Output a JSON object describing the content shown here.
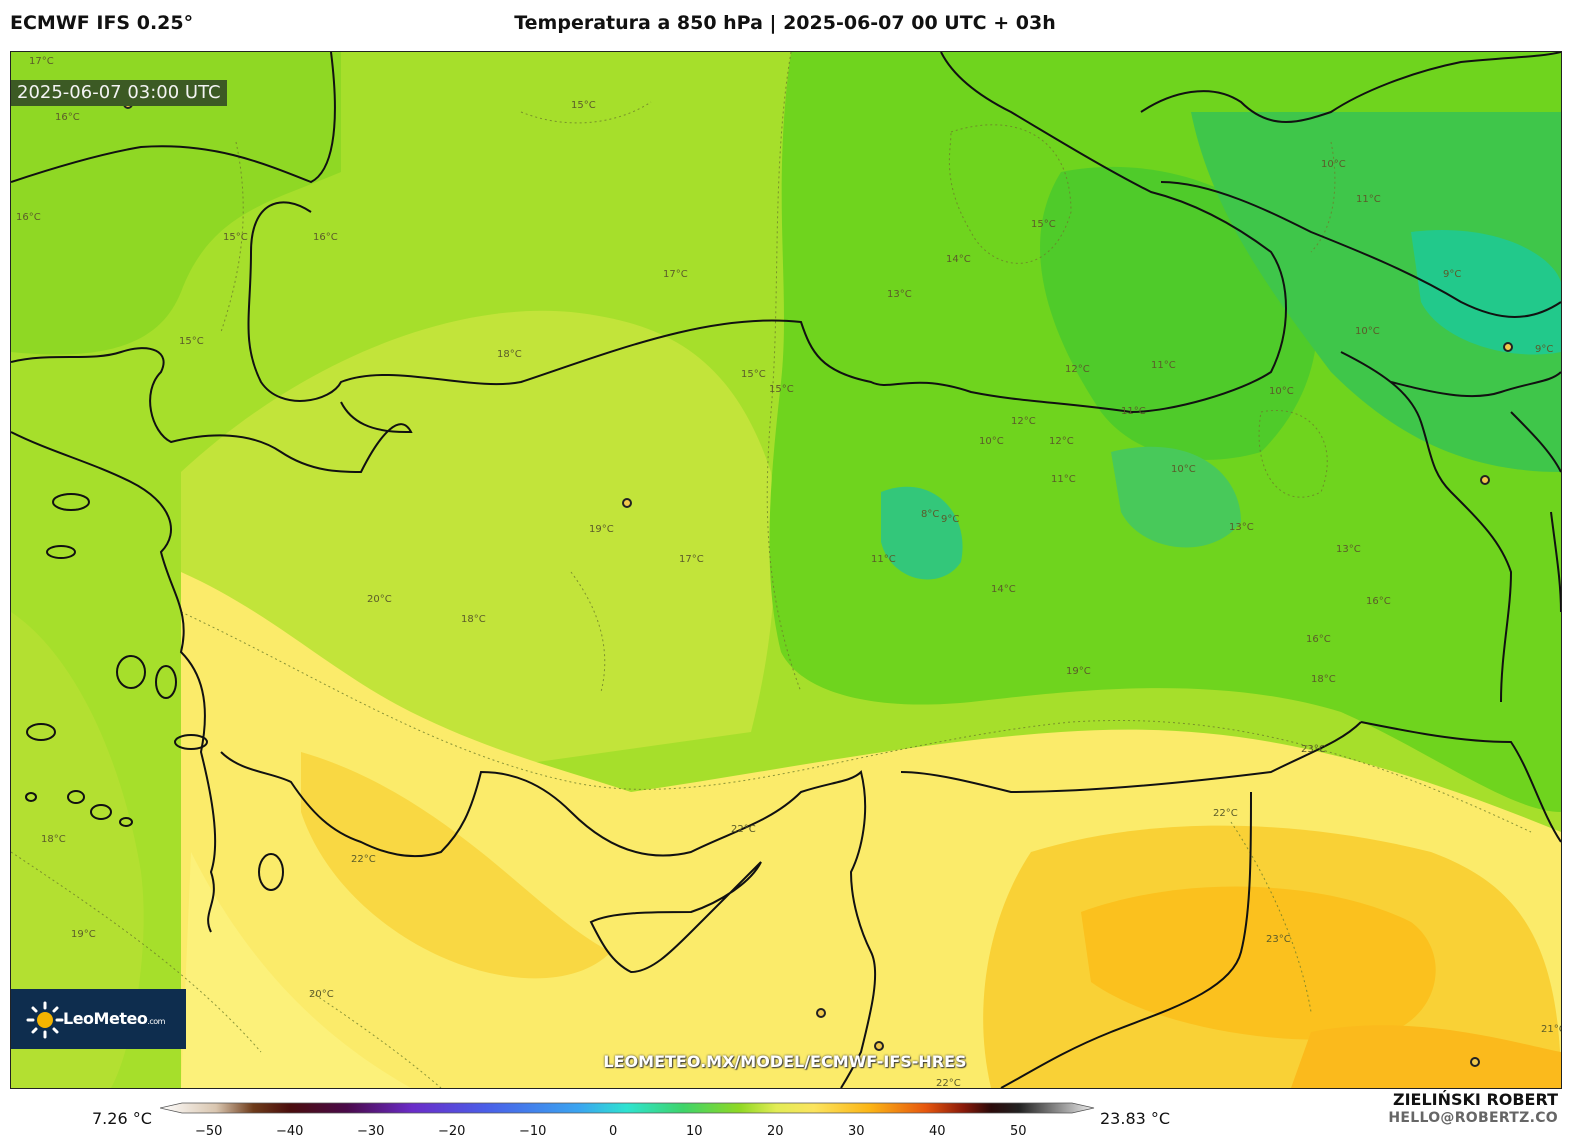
{
  "header": {
    "model": "ECMWF IFS 0.25°",
    "title": "Temperatura a 850 hPa | 2025-06-07 00 UTC + 03h"
  },
  "map": {
    "timestamp": "2025-06-07 03:00 UTC",
    "watermark": "LEOMETEO.MX/MODEL/ECMWF-IFS-HRES",
    "logo": {
      "name": "LeoMeteo",
      "suffix": ".com",
      "icon": "sun-icon"
    },
    "contour_labels": [
      "17°C",
      "16°C",
      "15°C",
      "16°C",
      "15°C",
      "16°C",
      "15°C",
      "18°C",
      "17°C",
      "13°C",
      "14°C",
      "15°C",
      "10°C",
      "11°C",
      "9°C",
      "10°C",
      "9°C",
      "15°C",
      "15°C",
      "12°C",
      "11°C",
      "12°C",
      "11°C",
      "10°C",
      "12°C",
      "10°C",
      "8°C",
      "9°C",
      "11°C",
      "10°C",
      "11°C",
      "13°C",
      "14°C",
      "13°C",
      "16°C",
      "16°C",
      "19°C",
      "17°C",
      "18°C",
      "19°C",
      "20°C",
      "18°C",
      "18°C",
      "22°C",
      "22°C",
      "22°C",
      "23°C",
      "19°C",
      "20°C",
      "23°C",
      "21°C",
      "22°C",
      "23°C"
    ],
    "colors": {
      "cold": "#2ec48a",
      "green": "#5fd21c",
      "lime": "#a5df2a",
      "yellow": "#fbeb6a",
      "orange": "#fbc11e"
    }
  },
  "colorbar": {
    "min_label": "7.26 °C",
    "max_label": "23.83 °C",
    "ticks": [
      "−50",
      "−40",
      "−30",
      "−20",
      "−10",
      "0",
      "10",
      "20",
      "30",
      "40",
      "50"
    ]
  },
  "credits": {
    "author": "ZIELIŃSKI ROBERT",
    "email": "HELLO@ROBERTZ.CO"
  }
}
